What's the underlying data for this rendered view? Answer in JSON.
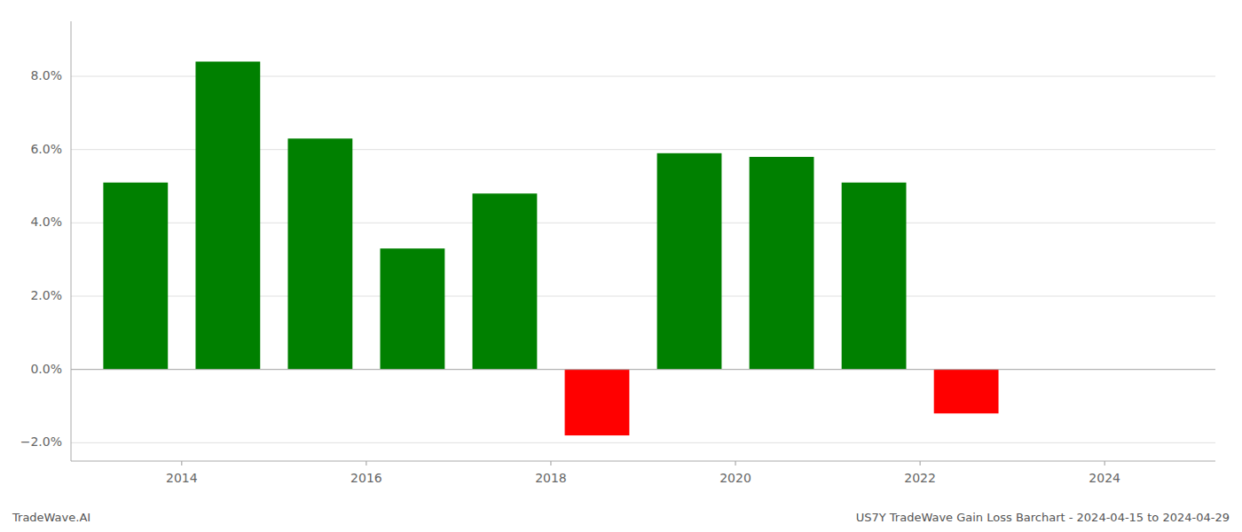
{
  "chart_data": {
    "type": "bar",
    "x": [
      2013.5,
      2014.5,
      2015.5,
      2016.5,
      2017.5,
      2018.5,
      2019.5,
      2020.5,
      2021.5,
      2022.5
    ],
    "values": [
      0.051,
      0.084,
      0.063,
      0.033,
      0.048,
      -0.018,
      0.059,
      0.058,
      0.051,
      -0.012
    ],
    "colors": [
      "#008000",
      "#008000",
      "#008000",
      "#008000",
      "#008000",
      "#ff0000",
      "#008000",
      "#008000",
      "#008000",
      "#ff0000"
    ],
    "xlim": [
      2012.8,
      2025.2
    ],
    "xticks": [
      2014,
      2016,
      2018,
      2020,
      2022,
      2024
    ],
    "ylim": [
      -0.025,
      0.095
    ],
    "yticks": [
      {
        "value": -0.02,
        "label": "−2.0%"
      },
      {
        "value": 0.0,
        "label": "0.0%"
      },
      {
        "value": 0.02,
        "label": "2.0%"
      },
      {
        "value": 0.04,
        "label": "4.0%"
      },
      {
        "value": 0.06,
        "label": "6.0%"
      },
      {
        "value": 0.08,
        "label": "8.0%"
      }
    ],
    "grid": true,
    "annotations": [
      "TradeWave.AI",
      "US7Y TradeWave Gain Loss Barchart - 2024-04-15 to 2024-04-29"
    ]
  }
}
